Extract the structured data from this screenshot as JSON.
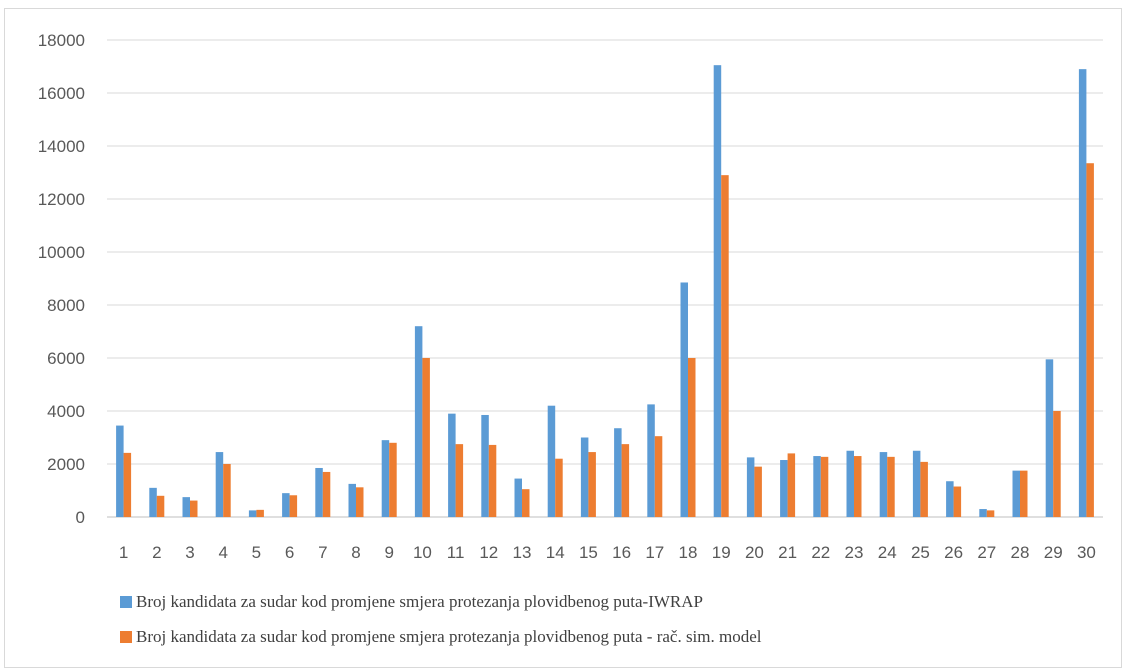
{
  "chart_data": {
    "type": "bar",
    "categories": [
      "1",
      "2",
      "3",
      "4",
      "5",
      "6",
      "7",
      "8",
      "9",
      "10",
      "11",
      "12",
      "13",
      "14",
      "15",
      "16",
      "17",
      "18",
      "19",
      "20",
      "21",
      "22",
      "23",
      "24",
      "25",
      "26",
      "27",
      "28",
      "29",
      "30"
    ],
    "series": [
      {
        "name": "Broj kandidata za sudar kod promjene smjera protezanja plovidbenog puta-IWRAP",
        "color": "#5b9bd5",
        "values": [
          3450,
          1100,
          750,
          2450,
          250,
          900,
          1850,
          1250,
          2900,
          7200,
          3900,
          3850,
          1450,
          4200,
          3000,
          3350,
          4250,
          8850,
          17050,
          2250,
          2150,
          2300,
          2500,
          2450,
          2500,
          1350,
          300,
          1750,
          5950,
          16900
        ]
      },
      {
        "name": "Broj kandidata za sudar kod promjene smjera protezanja plovidbenog puta - rač. sim. model",
        "color": "#ed7d31",
        "values": [
          2420,
          800,
          620,
          2000,
          270,
          820,
          1700,
          1120,
          2800,
          6000,
          2750,
          2720,
          1050,
          2200,
          2450,
          2750,
          3050,
          6000,
          12900,
          1900,
          2400,
          2270,
          2300,
          2270,
          2080,
          1150,
          250,
          1750,
          4000,
          13350
        ]
      }
    ],
    "y_ticks": [
      "0",
      "2000",
      "4000",
      "6000",
      "8000",
      "10000",
      "12000",
      "14000",
      "16000",
      "18000"
    ],
    "ylim": [
      0,
      18000
    ],
    "grid": true,
    "legend_position": "bottom"
  }
}
